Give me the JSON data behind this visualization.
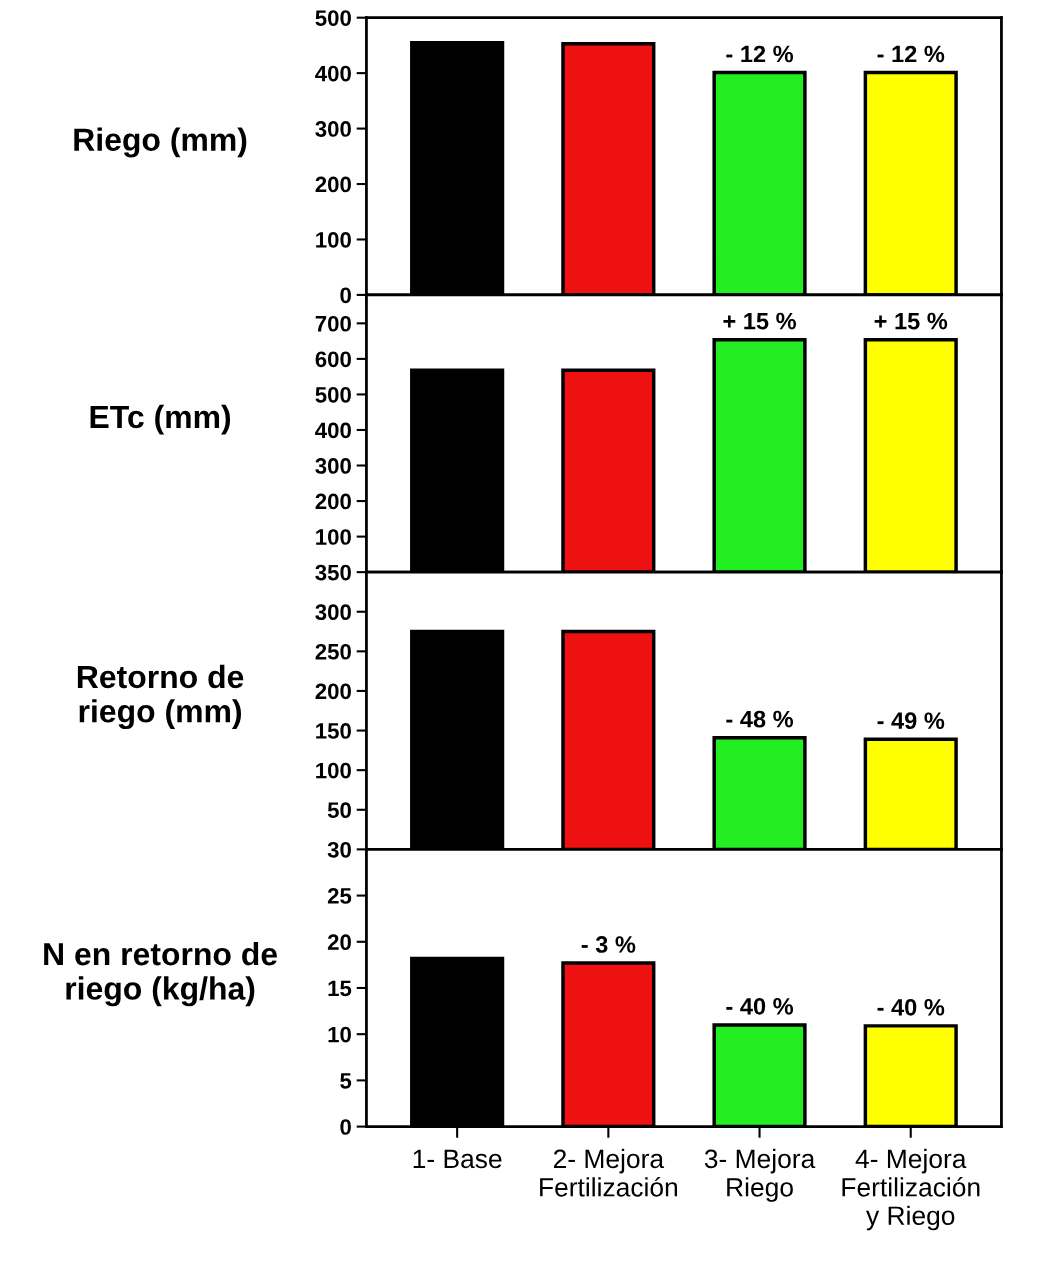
{
  "chart_data": [
    {
      "type": "bar",
      "ylabel": "Riego (mm)",
      "categories": [
        null,
        null,
        null,
        null
      ],
      "values": [
        455,
        453,
        401,
        401
      ],
      "colors": [
        "#000000",
        "#ee1111",
        "#22ee22",
        "#ffff00"
      ],
      "annotations": [
        {
          "text": "- 12 %",
          "y": 401
        },
        {
          "text": "- 12 %",
          "y": 401
        }
      ],
      "ylim": [
        0,
        500
      ],
      "yticks": [
        0,
        100,
        200,
        300,
        400,
        500
      ],
      "tick_labels": "y",
      "grid": false,
      "legend": false
    },
    {
      "type": "bar",
      "ylabel": "ETc (mm)",
      "categories": [
        null,
        null,
        null,
        null
      ],
      "values": [
        568,
        568,
        654,
        654
      ],
      "colors": [
        "#000000",
        "#ee1111",
        "#22ee22",
        "#ffff00"
      ],
      "annotations": [
        {
          "text": "+ 15 %",
          "y": 654
        },
        {
          "text": "+ 15 %",
          "y": 654
        }
      ],
      "ylim": [
        0,
        780
      ],
      "yticks": [
        100,
        200,
        300,
        400,
        500,
        600,
        700
      ],
      "tick_labels": "y",
      "grid": false,
      "legend": false
    },
    {
      "type": "bar",
      "ylabel": "Retorno de\nriego (mm)",
      "categories": [
        null,
        null,
        null,
        null
      ],
      "values": [
        275,
        275,
        141,
        139
      ],
      "colors": [
        "#000000",
        "#ee1111",
        "#22ee22",
        "#ffff00"
      ],
      "annotations": [
        {
          "text": "- 48 %",
          "y": 141
        },
        {
          "text": "- 49 %",
          "y": 139
        }
      ],
      "ylim": [
        0,
        350
      ],
      "yticks": [
        50,
        100,
        150,
        200,
        250,
        300,
        350
      ],
      "tick_labels": "y",
      "grid": false,
      "legend": false
    },
    {
      "type": "bar",
      "ylabel": "N en retorno de\nriego (kg/ha)",
      "categories": [
        "1- Base",
        "2- Mejora\nFertilización",
        "3- Mejora\nRiego",
        "4- Mejora\nFertilización\ny Riego"
      ],
      "values": [
        18.2,
        17.7,
        11.0,
        10.9
      ],
      "colors": [
        "#000000",
        "#ee1111",
        "#22ee22",
        "#ffff00"
      ],
      "annotations": [
        {
          "text": "- 3 %",
          "x": "2- Mejora\nFertilización",
          "y": 17.7
        },
        {
          "text": "- 40 %",
          "x": "3- Mejora\nRiego",
          "y": 11.0
        },
        {
          "text": "- 40 %",
          "x": "4- Mejora\nFertilización\ny Riego",
          "y": 10.9
        }
      ],
      "ylim": [
        0,
        30
      ],
      "yticks": [
        0,
        5,
        10,
        15,
        20,
        25,
        30
      ],
      "grid": false,
      "legend": false
    }
  ]
}
